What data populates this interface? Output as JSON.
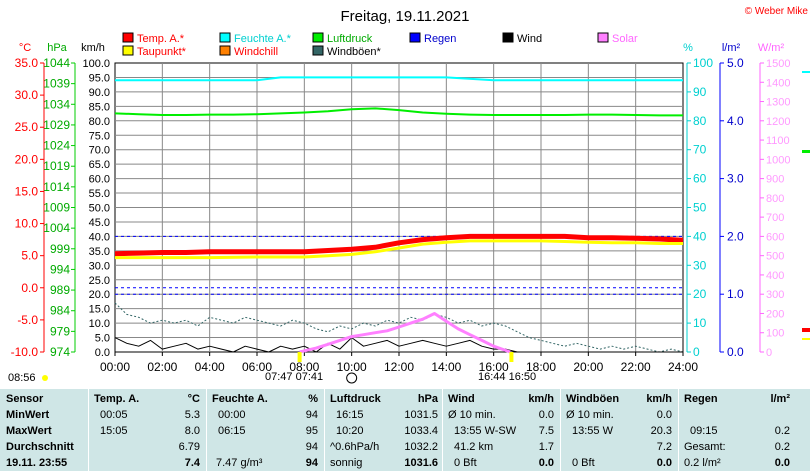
{
  "title": "Freitag, 19.11.2021",
  "credit": "© Weber Mike",
  "legend": [
    {
      "label": "Temp. A.*",
      "color": "#ff0000",
      "text_color": "#ff0000"
    },
    {
      "label": "Feuchte A.*",
      "color": "#00ffff",
      "text_color": "#00d0d0"
    },
    {
      "label": "Luftdruck",
      "color": "#00ee00",
      "text_color": "#00aa00"
    },
    {
      "label": "Regen",
      "color": "#0000ff",
      "text_color": "#0000cc"
    },
    {
      "label": "Wind",
      "color": "#000000",
      "text_color": "#000000"
    },
    {
      "label": "Solar",
      "color": "#ff80ff",
      "text_color": "#ff66ff"
    },
    {
      "label": "Taupunkt*",
      "color": "#ffff00",
      "text_color": "#ff0000"
    },
    {
      "label": "Windchill",
      "color": "#ff8000",
      "text_color": "#ff0000"
    },
    {
      "label": "Windböen*",
      "color": "#336666",
      "text_color": "#000000"
    }
  ],
  "units": {
    "temp": "°C",
    "pressure": "hPa",
    "wind": "km/h",
    "humidity": "%",
    "rain": "l/m²",
    "solar": "W/m²"
  },
  "markers": {
    "sunrise_label": "07:47",
    "sunrise_label2": "07:41",
    "sunset_label": "16:44",
    "sunset_label2": "16:50",
    "bottom_left_time": "08:56"
  },
  "chart_data": {
    "type": "line",
    "x_ticks": [
      "00:00",
      "02:00",
      "04:00",
      "06:00",
      "08:00",
      "10:00",
      "12:00",
      "14:00",
      "16:00",
      "18:00",
      "20:00",
      "22:00",
      "24:00"
    ],
    "axes": {
      "temp": {
        "ticks": [
          "35.0",
          "30.0",
          "25.0",
          "20.0",
          "15.0",
          "10.0",
          "5.0",
          "0.0",
          "-5.0",
          "-10.0"
        ],
        "range": [
          -10,
          35
        ]
      },
      "pressure": {
        "ticks": [
          "1044",
          "1039",
          "1034",
          "1029",
          "1024",
          "1019",
          "1014",
          "1009",
          "1004",
          "999",
          "994",
          "989",
          "984",
          "979",
          "974"
        ],
        "range": [
          974,
          1044
        ]
      },
      "wind": {
        "ticks": [
          "100.0",
          "95.0",
          "90.0",
          "85.0",
          "80.0",
          "75.0",
          "70.0",
          "65.0",
          "60.0",
          "55.0",
          "50.0",
          "45.0",
          "40.0",
          "35.0",
          "30.0",
          "25.0",
          "20.0",
          "15.0",
          "10.0",
          "5.0",
          "0.0"
        ],
        "range": [
          0,
          100
        ]
      },
      "humidity": {
        "ticks": [
          "100",
          "90",
          "80",
          "70",
          "60",
          "50",
          "40",
          "30",
          "20",
          "10",
          "0"
        ],
        "range": [
          0,
          100
        ]
      },
      "rain": {
        "ticks": [
          "5.0",
          "4.0",
          "3.0",
          "2.0",
          "1.0",
          "0.0"
        ],
        "range": [
          0,
          5
        ]
      },
      "solar": {
        "ticks": [
          "1500",
          "1400",
          "1300",
          "1200",
          "1100",
          "1000",
          "900",
          "800",
          "700",
          "600",
          "500",
          "400",
          "300",
          "200",
          "100",
          "0"
        ],
        "range": [
          0,
          1500
        ]
      }
    },
    "series": [
      {
        "name": "Temp. A.*",
        "axis": "temp",
        "color": "#ff0000",
        "x": [
          0,
          1,
          2,
          3,
          4,
          5,
          6,
          7,
          8,
          9,
          10,
          11,
          12,
          13,
          14,
          15,
          16,
          17,
          18,
          19,
          20,
          21,
          22,
          23,
          24
        ],
        "y": [
          5.3,
          5.4,
          5.5,
          5.5,
          5.6,
          5.6,
          5.6,
          5.6,
          5.6,
          5.8,
          6.0,
          6.3,
          7.0,
          7.5,
          7.8,
          8.0,
          8.0,
          8.0,
          8.0,
          8.0,
          7.8,
          7.8,
          7.7,
          7.6,
          7.4
        ]
      },
      {
        "name": "Taupunkt*",
        "axis": "temp",
        "color": "#ffff00",
        "x": [
          0,
          2,
          4,
          6,
          8,
          9,
          10,
          11,
          12,
          13,
          14,
          15,
          16,
          17,
          18,
          19,
          20,
          21,
          22,
          23,
          24
        ],
        "y": [
          4.7,
          4.7,
          4.7,
          4.8,
          4.8,
          5.0,
          5.2,
          5.6,
          6.2,
          6.8,
          7.1,
          7.3,
          7.3,
          7.3,
          7.3,
          7.2,
          7.1,
          7.0,
          7.0,
          6.9,
          6.9
        ]
      },
      {
        "name": "Feuchte A.*",
        "axis": "humidity",
        "color": "#00ffff",
        "x": [
          0,
          2,
          4,
          6,
          7,
          8,
          10,
          12,
          14,
          16,
          18,
          20,
          22,
          24
        ],
        "y": [
          94,
          94,
          94,
          94,
          95,
          95,
          95,
          95,
          95,
          94,
          94,
          94,
          94,
          94
        ]
      },
      {
        "name": "Luftdruck",
        "axis": "pressure",
        "color": "#00ee00",
        "x": [
          0,
          1,
          2,
          3,
          4,
          5,
          6,
          7,
          8,
          9,
          10,
          11,
          12,
          13,
          14,
          15,
          16,
          17,
          18,
          19,
          20,
          21,
          22,
          23,
          24
        ],
        "y": [
          1031.8,
          1031.6,
          1031.4,
          1031.4,
          1031.5,
          1031.5,
          1031.6,
          1031.8,
          1032.0,
          1032.3,
          1032.8,
          1033.0,
          1032.6,
          1032.0,
          1031.7,
          1031.5,
          1031.4,
          1031.4,
          1031.4,
          1031.4,
          1031.5,
          1031.5,
          1031.4,
          1031.3,
          1031.3
        ]
      },
      {
        "name": "Windböen*",
        "axis": "wind",
        "color": "#336666",
        "dashed": true,
        "x": [
          0,
          0.5,
          1,
          1.5,
          2,
          2.5,
          3,
          3.5,
          4,
          4.5,
          5,
          5.5,
          6,
          6.5,
          7,
          7.5,
          8,
          8.5,
          9,
          9.5,
          10,
          10.5,
          11,
          11.5,
          12,
          12.5,
          13,
          13.5,
          14,
          14.5,
          15,
          15.5,
          16,
          16.5,
          17,
          17.5,
          18,
          18.5,
          19,
          19.5,
          20,
          20.5,
          21,
          21.5,
          22,
          22.5,
          23,
          23.5,
          24
        ],
        "y": [
          17,
          13,
          12,
          10,
          11,
          10,
          11,
          9,
          12,
          11,
          10,
          12,
          11,
          10,
          9,
          11,
          10,
          8,
          7,
          9,
          8,
          10,
          9,
          11,
          10,
          12,
          11,
          13,
          12,
          10,
          11,
          9,
          10,
          9,
          7,
          5,
          4,
          3,
          2,
          3,
          2,
          1,
          2,
          1,
          2,
          1,
          0,
          1,
          0
        ]
      },
      {
        "name": "Wind",
        "axis": "wind",
        "color": "#000000",
        "x": [
          0,
          0.5,
          1,
          1.5,
          2,
          2.5,
          3,
          3.5,
          4,
          4.5,
          5,
          5.5,
          6,
          6.5,
          7,
          7.5,
          8,
          8.5,
          9,
          9.5,
          10,
          10.5,
          11,
          11.5,
          12,
          12.5,
          13,
          13.5,
          14,
          14.5,
          15,
          15.5,
          16,
          16.5,
          17,
          17.5,
          18,
          18.5,
          19,
          19.5,
          20,
          20.5,
          21,
          21.5,
          22,
          22.5,
          23,
          23.5,
          24
        ],
        "y": [
          5,
          3,
          2,
          4,
          1,
          2,
          3,
          1,
          2,
          1,
          0,
          2,
          1,
          0,
          2,
          1,
          2,
          0,
          3,
          1,
          5,
          2,
          3,
          4,
          2,
          3,
          4,
          3,
          2,
          3,
          4,
          2,
          1,
          1,
          0,
          0,
          0,
          0,
          0,
          0,
          0,
          0,
          0,
          0,
          0,
          0,
          0,
          0,
          0
        ]
      },
      {
        "name": "Solar",
        "axis": "solar",
        "color": "#ff80ff",
        "x": [
          7.8,
          8.5,
          9,
          9.5,
          10,
          10.5,
          11,
          11.5,
          12,
          12.5,
          13,
          13.5,
          14,
          14.5,
          15,
          15.5,
          16,
          16.7
        ],
        "y": [
          0,
          20,
          40,
          60,
          80,
          90,
          100,
          110,
          130,
          150,
          170,
          200,
          160,
          120,
          90,
          60,
          30,
          0
        ]
      }
    ],
    "reference_lines": [
      {
        "axis": "temp",
        "value": 0,
        "color": "#0000ff"
      },
      {
        "axis": "rain",
        "value": 1.0,
        "color": "#0000ff"
      },
      {
        "axis": "rain",
        "value": 2.0,
        "color": "#0000ff"
      }
    ],
    "grid": true
  },
  "table": {
    "sensor": {
      "header": "Sensor",
      "rows": [
        "MinWert",
        "MaxWert",
        "Durchschnitt",
        "19.11. 23:55"
      ]
    },
    "temp": {
      "header": "Temp. A.",
      "unit": "°C",
      "rows": [
        [
          "00:05",
          "5.3"
        ],
        [
          "15:05",
          "8.0"
        ],
        [
          "",
          "6.79"
        ],
        [
          "",
          "7.4"
        ]
      ]
    },
    "humidity": {
      "header": "Feuchte A.",
      "unit": "%",
      "rows": [
        [
          "00:00",
          "94"
        ],
        [
          "06:15",
          "95"
        ],
        [
          "",
          "94"
        ],
        [
          "7.47 g/m³",
          "94"
        ]
      ]
    },
    "pressure": {
      "header": "Luftdruck",
      "unit": "hPa",
      "rows": [
        [
          "16:15",
          "1031.5"
        ],
        [
          "10:20",
          "1033.4"
        ],
        [
          "^0.6hPa/h",
          "1032.2"
        ],
        [
          "sonnig",
          "1031.6"
        ]
      ]
    },
    "wind": {
      "header": "Wind",
      "unit": "km/h",
      "rows": [
        [
          "Ø 10 min.",
          "0.0"
        ],
        [
          "13:55  W-SW",
          "7.5"
        ],
        [
          "41.2 km",
          "1.7"
        ],
        [
          "0 Bft",
          "0.0"
        ]
      ]
    },
    "gusts": {
      "header": "Windböen",
      "unit": "km/h",
      "rows": [
        [
          "Ø 10 min.",
          "0.0"
        ],
        [
          "13:55  W",
          "20.3"
        ],
        [
          "",
          "7.2"
        ],
        [
          "0 Bft",
          "0.0"
        ]
      ]
    },
    "rain": {
      "header": "Regen",
      "unit": "l/m²",
      "rows": [
        [
          "",
          ""
        ],
        [
          "09:15",
          "0.2"
        ],
        [
          "Gesamt:",
          "0.2"
        ],
        [
          "0.2 l/m²",
          "0.0"
        ]
      ]
    }
  }
}
